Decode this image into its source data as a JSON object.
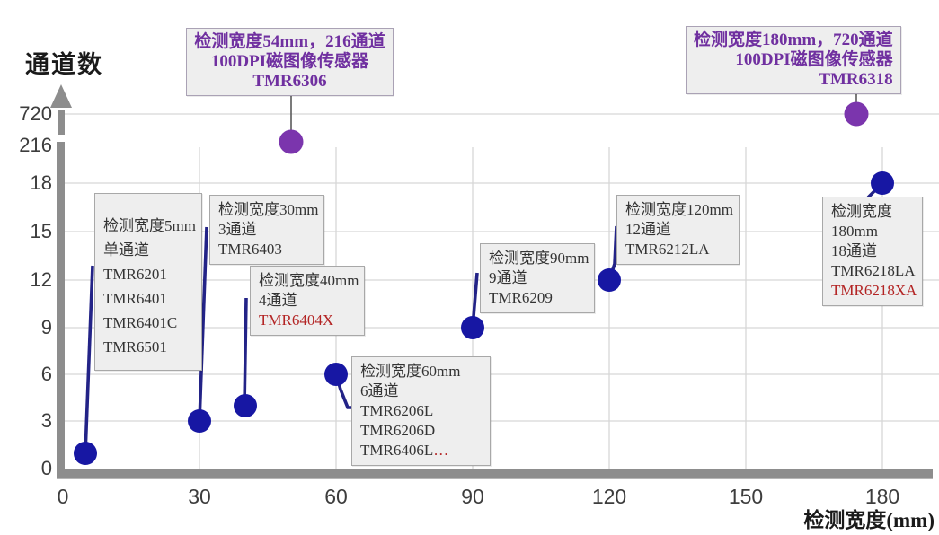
{
  "chart_data": {
    "type": "scatter",
    "title": "",
    "ylabel": "通道数",
    "xlabel": "检测宽度(mm)",
    "x_ticks": [
      0,
      30,
      60,
      90,
      120,
      150,
      180
    ],
    "y_ticks": [
      0,
      3,
      6,
      9,
      12,
      15,
      18,
      216,
      720
    ],
    "grid": true,
    "axis_note": "y axis has scale breaks between 18, 216 and 720",
    "colors": {
      "channel_sensor_dot": "#1717a3",
      "channel_leader": "#232387",
      "image_sensor_dot": "#7b35ad",
      "image_sensor_text": "#7030a0",
      "highlight_red": "#b32424",
      "gridline": "#d7d7d7",
      "axis_gray": "#8d8d8d"
    },
    "series": [
      {
        "name": "multi-channel-sensors",
        "points": [
          {
            "id": "p5",
            "width_mm": 5,
            "channels": 1,
            "lines": [
              [
                {
                  "t": "检测宽度5mm"
                }
              ],
              [
                {
                  "t": "单通道"
                }
              ],
              [
                {
                  "t": "TMR6201"
                }
              ],
              [
                {
                  "t": "TMR6401"
                }
              ],
              [
                {
                  "t": "TMR6401C"
                }
              ],
              [
                {
                  "t": "TMR6501"
                }
              ]
            ]
          },
          {
            "id": "p30",
            "width_mm": 30,
            "channels": 3,
            "lines": [
              [
                {
                  "t": "检测宽度30mm"
                }
              ],
              [
                {
                  "t": "3通道"
                }
              ],
              [
                {
                  "t": "TMR6403"
                }
              ]
            ]
          },
          {
            "id": "p40",
            "width_mm": 40,
            "channels": 4,
            "lines": [
              [
                {
                  "t": "检测宽度40mm"
                }
              ],
              [
                {
                  "t": "4通道"
                }
              ],
              [
                {
                  "t": "TMR6404X",
                  "red": true
                }
              ]
            ]
          },
          {
            "id": "p60",
            "width_mm": 60,
            "channels": 6,
            "lines": [
              [
                {
                  "t": "检测宽度60mm"
                }
              ],
              [
                {
                  "t": "6通道"
                }
              ],
              [
                {
                  "t": "TMR6206L"
                }
              ],
              [
                {
                  "t": "TMR6206D"
                }
              ],
              [
                {
                  "t": "TMR6406L"
                },
                {
                  "t": "…",
                  "red": true
                }
              ]
            ]
          },
          {
            "id": "p90",
            "width_mm": 90,
            "channels": 9,
            "lines": [
              [
                {
                  "t": "检测宽度90mm"
                }
              ],
              [
                {
                  "t": "9通道"
                }
              ],
              [
                {
                  "t": "TMR6209"
                }
              ]
            ]
          },
          {
            "id": "p120",
            "width_mm": 120,
            "channels": 12,
            "lines": [
              [
                {
                  "t": "检测宽度120mm"
                }
              ],
              [
                {
                  "t": "12通道"
                }
              ],
              [
                {
                  "t": "TMR6212LA"
                }
              ]
            ]
          },
          {
            "id": "p180",
            "width_mm": 180,
            "channels": 18,
            "lines": [
              [
                {
                  "t": "检测宽度"
                }
              ],
              [
                {
                  "t": "180mm"
                }
              ],
              [
                {
                  "t": "18通道"
                }
              ],
              [
                {
                  "t": "TMR6218LA"
                }
              ],
              [
                {
                  "t": "TMR6218XA",
                  "red": true
                }
              ]
            ]
          }
        ]
      },
      {
        "name": "magnetic-image-sensors",
        "points": [
          {
            "id": "s54",
            "width_mm": 54,
            "channels": 216,
            "lines": [
              [
                {
                  "t": "检测宽度54mm，216通道"
                }
              ],
              [
                {
                  "t": "100DPI磁图像传感器"
                }
              ],
              [
                {
                  "t": "TMR6306"
                }
              ]
            ]
          },
          {
            "id": "s180",
            "width_mm": 180,
            "channels": 720,
            "lines": [
              [
                {
                  "t": "检测宽度180mm，720通道"
                }
              ],
              [
                {
                  "t": "100DPI磁图像传感器"
                }
              ],
              [
                {
                  "t": "TMR6318"
                }
              ]
            ]
          }
        ]
      }
    ]
  }
}
